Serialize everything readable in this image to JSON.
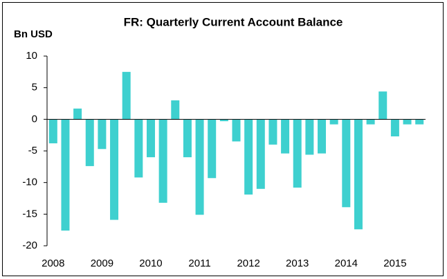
{
  "chart_data": {
    "type": "bar",
    "title": "FR: Quarterly Current Account Balance",
    "y_label": "Bn USD",
    "categories": [
      "2008",
      null,
      null,
      null,
      "2009",
      null,
      null,
      null,
      "2010",
      null,
      null,
      null,
      "2011",
      null,
      null,
      null,
      "2012",
      null,
      null,
      null,
      "2013",
      null,
      null,
      null,
      "2014",
      null,
      null,
      null,
      "2015",
      null,
      null
    ],
    "values": [
      -3.8,
      -17.6,
      1.7,
      -7.4,
      -4.7,
      -15.9,
      7.5,
      -9.2,
      -6.0,
      -13.2,
      3.0,
      -6.0,
      -15.1,
      -9.3,
      -0.3,
      -3.5,
      -11.9,
      -11.0,
      -4.0,
      -5.4,
      -10.8,
      -5.6,
      -5.4,
      -0.8,
      -13.9,
      -17.4,
      -0.8,
      4.4,
      -2.7,
      -0.8,
      -0.8
    ],
    "color": "#3ed0cf",
    "ylim": [
      -20,
      10
    ],
    "yticks": [
      -20,
      -15,
      -10,
      -5,
      0,
      5,
      10
    ],
    "grid": false
  }
}
